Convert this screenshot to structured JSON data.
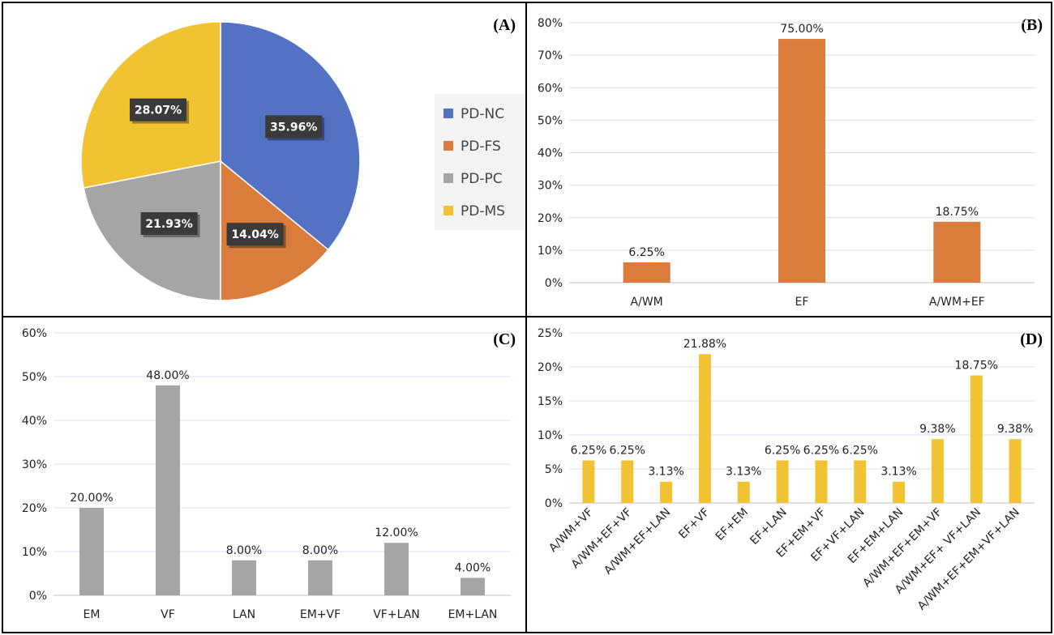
{
  "chart_data": [
    {
      "id": "A",
      "type": "pie",
      "panel_label": "(A)",
      "slices": [
        {
          "name": "PD-NC",
          "value": 35.96,
          "label": "35.96%",
          "color": "#5472C4"
        },
        {
          "name": "PD-FS",
          "value": 14.04,
          "label": "14.04%",
          "color": "#DA7C3B"
        },
        {
          "name": "PD-PC",
          "value": 21.93,
          "label": "21.93%",
          "color": "#A5A5A5"
        },
        {
          "name": "PD-MS",
          "value": 28.07,
          "label": "28.07%",
          "color": "#F1C232"
        }
      ],
      "legend": [
        "PD-NC",
        "PD-FS",
        "PD-PC",
        "PD-MS"
      ],
      "legend_position": "right"
    },
    {
      "id": "B",
      "type": "bar",
      "panel_label": "(B)",
      "color": "#DA7C3B",
      "categories": [
        "A/WM",
        "EF",
        "A/WM+EF"
      ],
      "values": [
        6.25,
        75.0,
        18.75
      ],
      "data_labels": [
        "6.25%",
        "75.00%",
        "18.75%"
      ],
      "yticks": [
        "0%",
        "10%",
        "20%",
        "30%",
        "40%",
        "50%",
        "60%",
        "70%",
        "80%"
      ],
      "ylim": [
        0,
        80
      ],
      "grid": true
    },
    {
      "id": "C",
      "type": "bar",
      "panel_label": "(C)",
      "color": "#A5A5A5",
      "categories": [
        "EM",
        "VF",
        "LAN",
        "EM+VF",
        "VF+LAN",
        "EM+LAN"
      ],
      "values": [
        20.0,
        48.0,
        8.0,
        8.0,
        12.0,
        4.0
      ],
      "data_labels": [
        "20.00%",
        "48.00%",
        "8.00%",
        "8.00%",
        "12.00%",
        "4.00%"
      ],
      "yticks": [
        "0%",
        "10%",
        "20%",
        "30%",
        "40%",
        "50%",
        "60%"
      ],
      "ylim": [
        0,
        60
      ],
      "grid": true
    },
    {
      "id": "D",
      "type": "bar",
      "panel_label": "(D)",
      "color": "#F1C232",
      "categories": [
        "A/WM+VF",
        "A/WM+EF+VF",
        "A/WM+EF+LAN",
        "EF+VF",
        "EF+EM",
        "EF+LAN",
        "EF+EM+VF",
        "EF+VF+LAN",
        "EF+EM+LAN",
        "A/WM+EF+EM+VF",
        "A/WM+EF+ VF+LAN",
        "A/WM+EF+EM+VF+LAN"
      ],
      "values": [
        6.25,
        6.25,
        3.13,
        21.88,
        3.13,
        6.25,
        6.25,
        6.25,
        3.13,
        9.38,
        18.75,
        9.38
      ],
      "data_labels": [
        "6.25%",
        "6.25%",
        "3.13%",
        "21.88%",
        "3.13%",
        "6.25%",
        "6.25%",
        "6.25%",
        "3.13%",
        "9.38%",
        "18.75%",
        "9.38%"
      ],
      "yticks": [
        "0%",
        "5%",
        "10%",
        "15%",
        "20%",
        "25%"
      ],
      "ylim": [
        0,
        25
      ],
      "grid": true
    }
  ]
}
